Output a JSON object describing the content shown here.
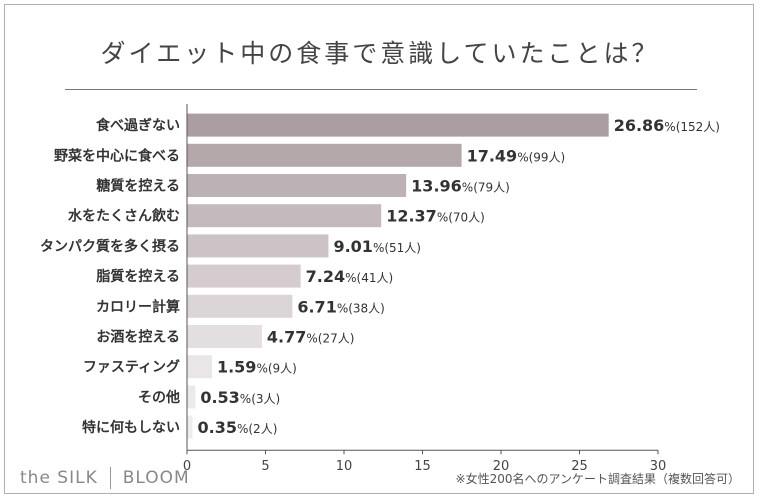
{
  "chart_data": {
    "type": "bar",
    "orientation": "horizontal",
    "title": "ダイエット中の食事で意識していたことは？",
    "categories": [
      "食べ過ぎない",
      "野菜を中心に食べる",
      "糖質を控える",
      "水をたくさん飲む",
      "タンパク質を多く摂る",
      "脂質を控える",
      "カロリー計算",
      "お酒を控える",
      "ファスティング",
      "その他",
      "特に何もしない"
    ],
    "values": [
      26.86,
      17.49,
      13.96,
      12.37,
      9.01,
      7.24,
      6.71,
      4.77,
      1.59,
      0.53,
      0.35
    ],
    "value_labels": [
      "26.86",
      "17.49",
      "13.96",
      "12.37",
      "9.01",
      "7.24",
      "6.71",
      "4.77",
      "1.59",
      "0.53",
      "0.35"
    ],
    "percent_sign": "%",
    "counts": [
      "(152人)",
      "(99人)",
      "(79人)",
      "(70人)",
      "(51人)",
      "(41人)",
      "(38人)",
      "(27人)",
      "(9人)",
      "(3人)",
      "(2人)"
    ],
    "xlim": [
      0,
      30
    ],
    "xticks": [
      "0",
      "5",
      "10",
      "15",
      "20",
      "25",
      "30"
    ],
    "bar_colors": [
      "#ab9ea2",
      "#b4a8ab",
      "#bcb1b4",
      "#c4babd",
      "#ccc3c6",
      "#d4cccf",
      "#dbd5d7",
      "#e3dedf",
      "#eae6e7",
      "#ece9ea",
      "#efecec"
    ],
    "grid": false
  },
  "footer": {
    "brand_left": "the SILK",
    "brand_right": "BLOOM",
    "note": "※女性200名へのアンケート調査結果（複数回答可）"
  }
}
